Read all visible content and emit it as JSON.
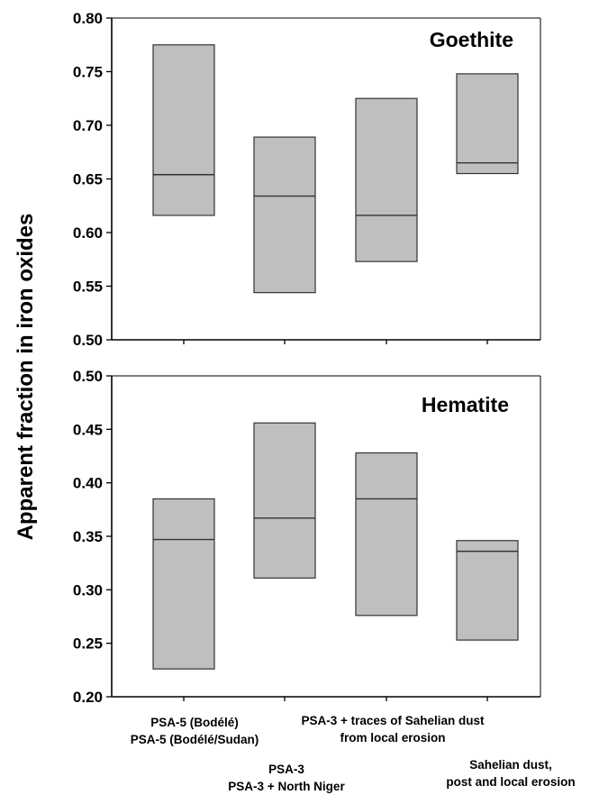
{
  "chart_data": [
    {
      "type": "box",
      "title": "Goethite",
      "ylabel": "Apparent fraction in iron oxides",
      "ylim": [
        0.5,
        0.8
      ],
      "yticks": [
        "0.50",
        "0.55",
        "0.60",
        "0.65",
        "0.70",
        "0.75",
        "0.80"
      ],
      "boxes": [
        {
          "low": 0.616,
          "median": 0.654,
          "high": 0.775
        },
        {
          "low": 0.544,
          "median": 0.634,
          "high": 0.689
        },
        {
          "low": 0.573,
          "median": 0.616,
          "high": 0.725
        },
        {
          "low": 0.655,
          "median": 0.665,
          "high": 0.748
        }
      ]
    },
    {
      "type": "box",
      "title": "Hematite",
      "ylabel": "Apparent fraction in iron oxides",
      "ylim": [
        0.2,
        0.5
      ],
      "yticks": [
        "0.20",
        "0.25",
        "0.30",
        "0.35",
        "0.40",
        "0.45",
        "0.50"
      ],
      "boxes": [
        {
          "low": 0.226,
          "median": 0.347,
          "high": 0.385
        },
        {
          "low": 0.311,
          "median": 0.367,
          "high": 0.456
        },
        {
          "low": 0.276,
          "median": 0.385,
          "high": 0.428
        },
        {
          "low": 0.253,
          "median": 0.336,
          "high": 0.346
        }
      ]
    }
  ],
  "ylabel": "Apparent fraction in iron oxides",
  "category_labels": [
    {
      "lines": [
        "PSA-5 (Bodélé)",
        "PSA-5 (Bodélé/Sudan)"
      ]
    },
    {
      "lines": [
        "PSA-3",
        "PSA-3 + North Niger"
      ]
    },
    {
      "lines": [
        "PSA-3 + traces of Sahelian dust",
        "from local erosion"
      ]
    },
    {
      "lines": [
        "Sahelian dust,",
        "post and local erosion"
      ]
    }
  ],
  "colors": {
    "box_fill": "#bfbfbf",
    "box_stroke": "#333333",
    "axis": "#000000"
  }
}
